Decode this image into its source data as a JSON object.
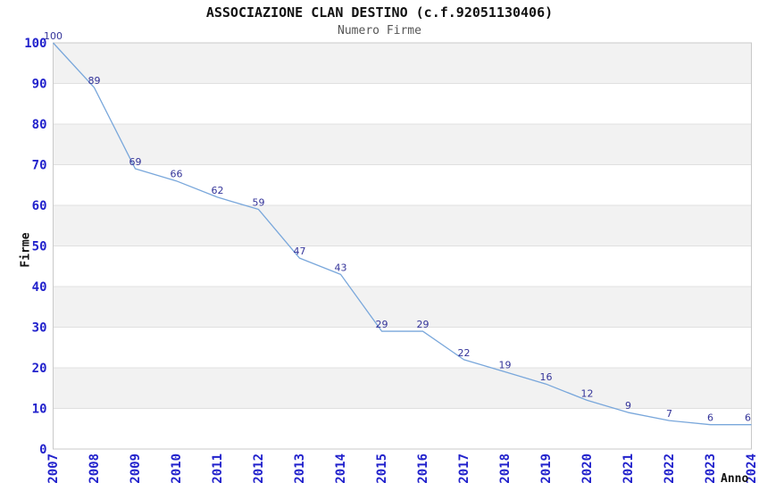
{
  "chart_data": {
    "type": "line",
    "title": "ASSOCIAZIONE CLAN DESTINO (c.f.92051130406)",
    "subtitle": "Numero Firme",
    "xlabel": "Anno",
    "ylabel": "Firme",
    "categories": [
      "2007",
      "2008",
      "2009",
      "2010",
      "2011",
      "2012",
      "2013",
      "2014",
      "2015",
      "2016",
      "2017",
      "2018",
      "2019",
      "2020",
      "2021",
      "2022",
      "2023",
      "2024"
    ],
    "series": [
      {
        "name": "Numero Firme",
        "values": [
          100,
          89,
          69,
          66,
          62,
          59,
          47,
          43,
          29,
          29,
          22,
          19,
          16,
          12,
          9,
          7,
          6,
          6
        ]
      }
    ],
    "ylim": [
      0,
      100
    ],
    "ytick_step": 10,
    "grid": "horizontal",
    "banding": "alternating-gray",
    "legend": "none",
    "point_labels": "shown",
    "x_tick_rotation": -90,
    "colors": {
      "line": "#79a7db",
      "tick_labels": "#2222cc",
      "point_labels": "#333399",
      "band": "#f2f2f2",
      "gridline": "#e0e0e0",
      "border": "#c9c9c9",
      "title": "#111111",
      "subtitle": "#555555",
      "background": "#ffffff"
    }
  }
}
